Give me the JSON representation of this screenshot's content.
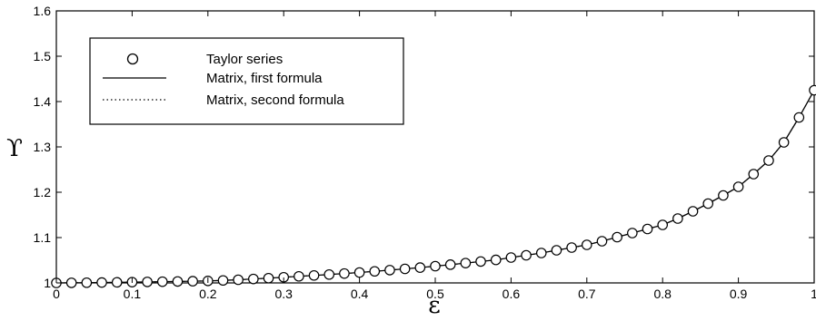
{
  "chart_data": {
    "type": "line",
    "title": "",
    "xlabel": "ε",
    "ylabel": "ϒ",
    "xlim": [
      0,
      1
    ],
    "ylim": [
      1,
      1.6
    ],
    "xticks": [
      0,
      0.1,
      0.2,
      0.3,
      0.4,
      0.5,
      0.6,
      0.7,
      0.8,
      0.9,
      1
    ],
    "xtick_labels": [
      "0",
      "0.1",
      "0.2",
      "0.3",
      "0.4",
      "0.5",
      "0.6",
      "0.7",
      "0.8",
      "0.9",
      "1"
    ],
    "yticks": [
      1,
      1.1,
      1.2,
      1.3,
      1.4,
      1.5,
      1.6
    ],
    "ytick_labels": [
      "1",
      "1.1",
      "1.2",
      "1.3",
      "1.4",
      "1.5",
      "1.6"
    ],
    "grid": false,
    "legend_position": "top-left",
    "series": [
      {
        "name": "Taylor series",
        "style": "circle-markers",
        "x": [
          0,
          0.02,
          0.04,
          0.06,
          0.08,
          0.1,
          0.12,
          0.14,
          0.16,
          0.18,
          0.2,
          0.22,
          0.24,
          0.26,
          0.28,
          0.3,
          0.32,
          0.34,
          0.36,
          0.38,
          0.4,
          0.42,
          0.44,
          0.46,
          0.48,
          0.5,
          0.52,
          0.54,
          0.56,
          0.58,
          0.6,
          0.62,
          0.64,
          0.66,
          0.68,
          0.7,
          0.72,
          0.74,
          0.76,
          0.78,
          0.8,
          0.82,
          0.84,
          0.86,
          0.88,
          0.9,
          0.92,
          0.94,
          0.96,
          0.98,
          1
        ],
        "y": [
          1.0,
          1.0002,
          1.0005,
          1.0009,
          1.0013,
          1.0017,
          1.0022,
          1.0027,
          1.0032,
          1.0038,
          1.0044,
          1.0055,
          1.007,
          1.0087,
          1.0105,
          1.0125,
          1.0145,
          1.0165,
          1.0185,
          1.0207,
          1.023,
          1.0255,
          1.0282,
          1.031,
          1.0338,
          1.037,
          1.0403,
          1.0437,
          1.0472,
          1.0508,
          1.056,
          1.061,
          1.066,
          1.072,
          1.078,
          1.084,
          1.092,
          1.101,
          1.11,
          1.119,
          1.128,
          1.142,
          1.158,
          1.175,
          1.193,
          1.212,
          1.24,
          1.27,
          1.31,
          1.365,
          1.425
        ]
      },
      {
        "name": "Matrix,  first formula",
        "style": "solid-line",
        "x": [
          0,
          0.02,
          0.04,
          0.06,
          0.08,
          0.1,
          0.12,
          0.14,
          0.16,
          0.18,
          0.2,
          0.22,
          0.24,
          0.26,
          0.28,
          0.3,
          0.32,
          0.34,
          0.36,
          0.38,
          0.4,
          0.42,
          0.44,
          0.46,
          0.48,
          0.5,
          0.52,
          0.54,
          0.56,
          0.58,
          0.6,
          0.62,
          0.64,
          0.66,
          0.68,
          0.7,
          0.72,
          0.74,
          0.76,
          0.78,
          0.8,
          0.82,
          0.84,
          0.86,
          0.88,
          0.9,
          0.92,
          0.94,
          0.96,
          0.98,
          1
        ],
        "y": [
          1.0,
          1.0002,
          1.0005,
          1.0009,
          1.0013,
          1.0017,
          1.0022,
          1.0027,
          1.0032,
          1.0038,
          1.0044,
          1.0055,
          1.007,
          1.0087,
          1.0105,
          1.0125,
          1.0145,
          1.0165,
          1.0185,
          1.0207,
          1.023,
          1.0255,
          1.0282,
          1.031,
          1.0338,
          1.037,
          1.0403,
          1.0437,
          1.0472,
          1.0508,
          1.056,
          1.061,
          1.066,
          1.072,
          1.078,
          1.084,
          1.092,
          1.101,
          1.11,
          1.119,
          1.128,
          1.142,
          1.158,
          1.175,
          1.193,
          1.212,
          1.24,
          1.27,
          1.31,
          1.365,
          1.425
        ]
      },
      {
        "name": "Matrix, second formula",
        "style": "dotted-line",
        "x": [
          0,
          0.02,
          0.04,
          0.06,
          0.08,
          0.1,
          0.12,
          0.14,
          0.16,
          0.18,
          0.2,
          0.22,
          0.24,
          0.26,
          0.28,
          0.3,
          0.32,
          0.34,
          0.36,
          0.38,
          0.4,
          0.42,
          0.44,
          0.46,
          0.48,
          0.5,
          0.52,
          0.54,
          0.56,
          0.58,
          0.6,
          0.62,
          0.64,
          0.66,
          0.68,
          0.7,
          0.72,
          0.74,
          0.76,
          0.78,
          0.8,
          0.82,
          0.84,
          0.86,
          0.88,
          0.9,
          0.92,
          0.94,
          0.96,
          0.98,
          1
        ],
        "y": [
          1.0,
          1.0002,
          1.0005,
          1.0009,
          1.0013,
          1.0017,
          1.0022,
          1.0027,
          1.0032,
          1.0038,
          1.0044,
          1.0055,
          1.007,
          1.0087,
          1.0105,
          1.0125,
          1.0145,
          1.0165,
          1.0185,
          1.0207,
          1.023,
          1.0255,
          1.0282,
          1.031,
          1.0338,
          1.037,
          1.0403,
          1.0437,
          1.0472,
          1.0508,
          1.056,
          1.061,
          1.066,
          1.072,
          1.078,
          1.084,
          1.092,
          1.101,
          1.11,
          1.119,
          1.128,
          1.142,
          1.158,
          1.175,
          1.193,
          1.212,
          1.24,
          1.27,
          1.31,
          1.365,
          1.425
        ]
      }
    ]
  }
}
